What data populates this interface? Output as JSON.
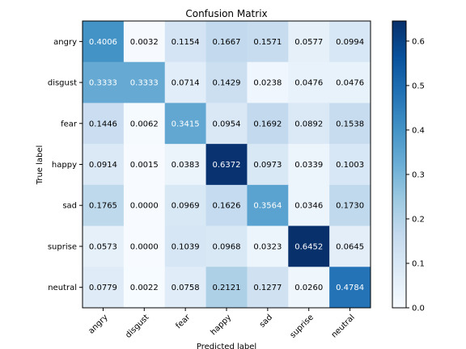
{
  "chart_data": {
    "type": "heatmap",
    "title": "Confusion Matrix",
    "xlabel": "Predicted label",
    "ylabel": "True label",
    "x_categories": [
      "angry",
      "disgust",
      "fear",
      "happy",
      "sad",
      "suprise",
      "neutral"
    ],
    "y_categories": [
      "angry",
      "disgust",
      "fear",
      "happy",
      "sad",
      "suprise",
      "neutral"
    ],
    "values": [
      [
        0.4006,
        0.0032,
        0.1154,
        0.1667,
        0.1571,
        0.0577,
        0.0994
      ],
      [
        0.3333,
        0.3333,
        0.0714,
        0.1429,
        0.0238,
        0.0476,
        0.0476
      ],
      [
        0.1446,
        0.0062,
        0.3415,
        0.0954,
        0.1692,
        0.0892,
        0.1538
      ],
      [
        0.0914,
        0.0015,
        0.0383,
        0.6372,
        0.0973,
        0.0339,
        0.1003
      ],
      [
        0.1765,
        0.0,
        0.0969,
        0.1626,
        0.3564,
        0.0346,
        0.173
      ],
      [
        0.0573,
        0.0,
        0.1039,
        0.0968,
        0.0323,
        0.6452,
        0.0645
      ],
      [
        0.0779,
        0.0022,
        0.0758,
        0.2121,
        0.1277,
        0.026,
        0.4784
      ]
    ],
    "cell_labels": [
      [
        "0.4006",
        "0.0032",
        "0.1154",
        "0.1667",
        "0.1571",
        "0.0577",
        "0.0994"
      ],
      [
        "0.3333",
        "0.3333",
        "0.0714",
        "0.1429",
        "0.0238",
        "0.0476",
        "0.0476"
      ],
      [
        "0.1446",
        "0.0062",
        "0.3415",
        "0.0954",
        "0.1692",
        "0.0892",
        "0.1538"
      ],
      [
        "0.0914",
        "0.0015",
        "0.0383",
        "0.6372",
        "0.0973",
        "0.0339",
        "0.1003"
      ],
      [
        "0.1765",
        "0.0000",
        "0.0969",
        "0.1626",
        "0.3564",
        "0.0346",
        "0.1730"
      ],
      [
        "0.0573",
        "0.0000",
        "0.1039",
        "0.0968",
        "0.0323",
        "0.6452",
        "0.0645"
      ],
      [
        "0.0779",
        "0.0022",
        "0.0758",
        "0.2121",
        "0.1277",
        "0.0260",
        "0.4784"
      ]
    ],
    "colormap": "Blues",
    "vmin": 0,
    "vmax": 0.6452,
    "colorbar_ticks": [
      0.0,
      0.1,
      0.2,
      0.3,
      0.4,
      0.5,
      0.6
    ],
    "colorbar_tick_labels": [
      "0.0",
      "0.1",
      "0.2",
      "0.3",
      "0.4",
      "0.5",
      "0.6"
    ],
    "x_tick_rotation": 45,
    "grid": false
  }
}
